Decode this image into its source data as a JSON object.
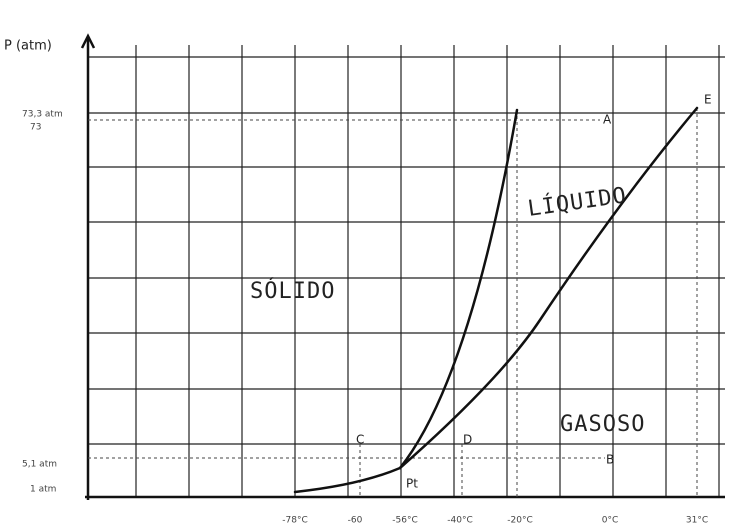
{
  "axes": {
    "y_label": "P (atm)",
    "y_ticks": [
      "73,3 atm",
      "73",
      "5,1 atm",
      "1 atm"
    ],
    "x_ticks": [
      "-78°C",
      "-60",
      "-56°C",
      "-40°C",
      "-20°C",
      "0°C",
      "31°C"
    ]
  },
  "regions": [
    "SÓLIDO",
    "LÍQUIDO",
    "GASOSO"
  ],
  "points": [
    "E",
    "A",
    "C",
    "D",
    "B",
    "Pt"
  ]
}
